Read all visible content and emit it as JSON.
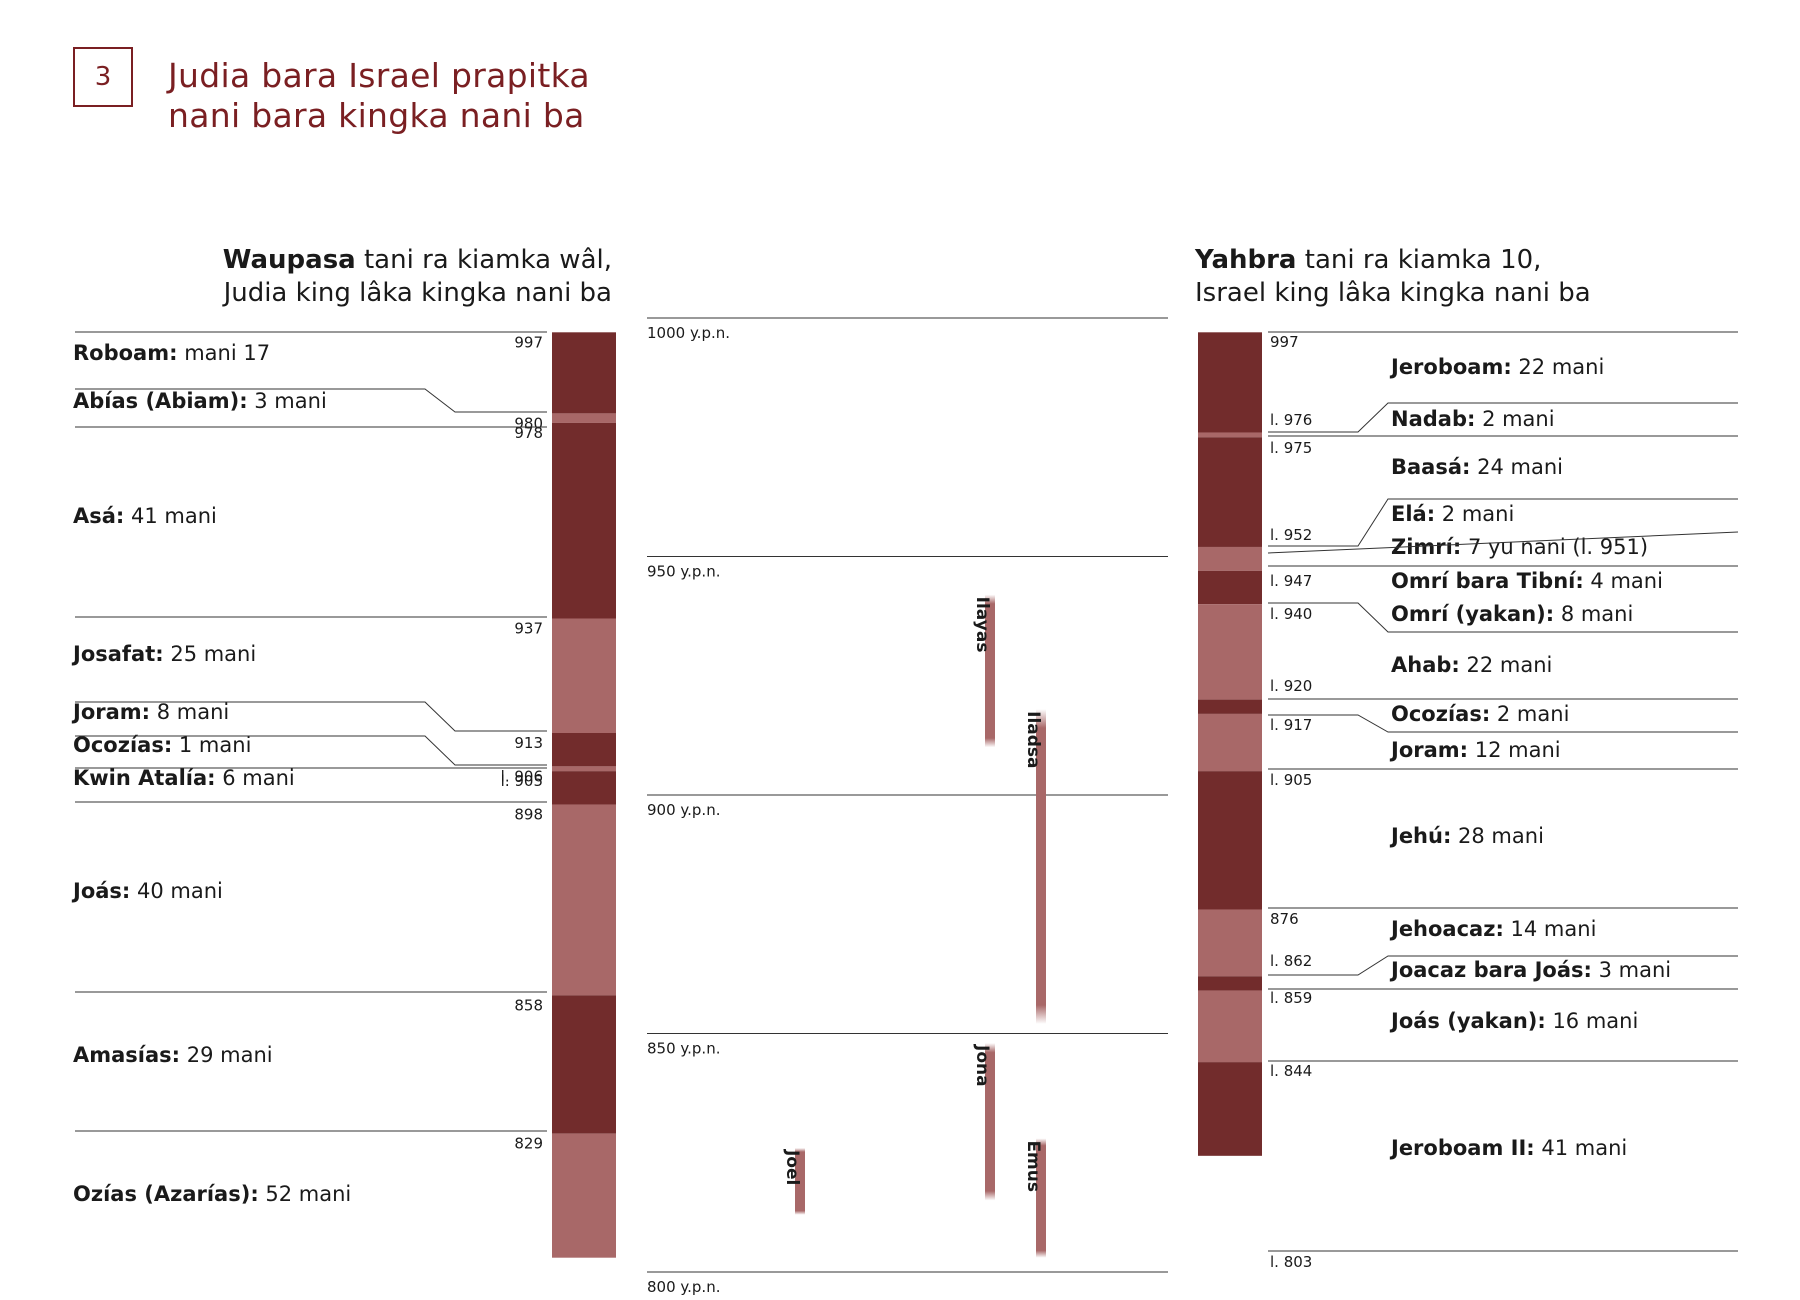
{
  "badge": "3",
  "title_lines": [
    "Judia bara Israel prapitka",
    "nani bara kingka nani ba"
  ],
  "left_header": {
    "bold": "Waupasa",
    "rest": " tani ra kiamka wâl,",
    "line2": "Judia king lâka kingka nani ba"
  },
  "right_header": {
    "bold": "Yahbra",
    "rest": " tani ra kiamka 10,",
    "line2": "Israel king lâka kingka nani ba"
  },
  "colors": {
    "dark": "#722c2c",
    "light": "#a86868",
    "accent": "#7a1f22",
    "line": "#333333"
  },
  "chart_data": {
    "type": "timeline",
    "axis_labels": [
      "1000 y.p.n.",
      "950 y.p.n.",
      "900 y.p.n.",
      "850 y.p.n.",
      "800 y.p.n."
    ],
    "judah": [
      {
        "name": "Roboam:",
        "dur": " mani 17",
        "start": 997,
        "start_label": "997",
        "shade": "dark"
      },
      {
        "name": "Abías (Abiam):",
        "dur": " 3 mani",
        "start": 980,
        "start_label": "980",
        "shade": "light"
      },
      {
        "name": "Asá:",
        "dur": " 41 mani",
        "start": 978,
        "start_label": "978",
        "shade": "dark"
      },
      {
        "name": "Josafat:",
        "dur": " 25 mani",
        "start": 937,
        "start_label": "937",
        "shade": "light"
      },
      {
        "name": "Joram:",
        "dur": " 8 mani",
        "start": 913,
        "start_label": "913",
        "shade": "dark"
      },
      {
        "name": "Ocozías:",
        "dur": " 1 mani",
        "start": 906,
        "start_label": "l. 906",
        "shade": "light"
      },
      {
        "name": "Kwin Atalía:",
        "dur": " 6 mani",
        "start": 905,
        "start_label": "l. 905",
        "shade": "dark"
      },
      {
        "name": "Joás:",
        "dur": " 40 mani",
        "start": 898,
        "start_label": "898",
        "shade": "light"
      },
      {
        "name": "Amasías:",
        "dur": " 29 mani",
        "start": 858,
        "start_label": "858",
        "shade": "dark"
      },
      {
        "name": "Ozías (Azarías):",
        "dur": " 52 mani",
        "start": 829,
        "start_label": "829",
        "shade": "light"
      }
    ],
    "israel": [
      {
        "name": "Jeroboam:",
        "dur": " 22 mani",
        "start": 997,
        "start_label": "997",
        "shade": "dark"
      },
      {
        "name": "Nadab:",
        "dur": " 2 mani",
        "start": 976,
        "start_label": "l. 976",
        "shade": "light"
      },
      {
        "name": "Baasá:",
        "dur": " 24 mani",
        "start": 975,
        "start_label": "l. 975",
        "shade": "dark"
      },
      {
        "name": "Elá:",
        "dur": " 2 mani",
        "start": 952,
        "start_label": "l. 952",
        "shade": "light"
      },
      {
        "name": "Zimrí:",
        "dur": " 7 yu nani (l. 951)",
        "start": 951,
        "start_label": "",
        "shade": "light"
      },
      {
        "name": "Omrí bara Tibní:",
        "dur": " 4 mani",
        "start": 947,
        "start_label": "l. 947",
        "shade": "dark"
      },
      {
        "name": "Omrí (yakan):",
        "dur": " 8 mani",
        "start": 940,
        "start_label": "l. 940",
        "shade": "light"
      },
      {
        "name": "Ahab:",
        "dur": " 22 mani",
        "start": 940,
        "start_label": "",
        "shade": "light"
      },
      {
        "name": "Ocozías:",
        "dur": " 2 mani",
        "start": 920,
        "start_label": "l. 920",
        "shade": "dark"
      },
      {
        "name": "Joram:",
        "dur": " 12 mani",
        "start": 917,
        "start_label": "l. 917",
        "shade": "light"
      },
      {
        "name": "Jehú:",
        "dur": " 28 mani",
        "start": 905,
        "start_label": "l. 905",
        "shade": "dark"
      },
      {
        "name": "Jehoacaz:",
        "dur": " 14 mani",
        "start": 876,
        "start_label": "876",
        "shade": "light"
      },
      {
        "name": "Joacaz bara Joás:",
        "dur": " 3 mani",
        "start": 862,
        "start_label": "l. 862",
        "shade": "dark"
      },
      {
        "name": "Joás (yakan):",
        "dur": " 16 mani",
        "start": 859,
        "start_label": "l. 859",
        "shade": "light"
      },
      {
        "name": "Jeroboam II:",
        "dur": " 41 mani",
        "start": 844,
        "start_label": "l. 844",
        "shade": "dark"
      }
    ],
    "israel_end_label": "l. 803",
    "prophets": [
      {
        "name": "Ilayas",
        "from": 942,
        "to": 910
      },
      {
        "name": "Iladsa",
        "from": 918,
        "to": 852
      },
      {
        "name": "Jona",
        "from": 848,
        "to": 815
      },
      {
        "name": "Emus",
        "from": 828,
        "to": 803
      },
      {
        "name": "Joel",
        "from": 826,
        "to": 812
      }
    ]
  }
}
